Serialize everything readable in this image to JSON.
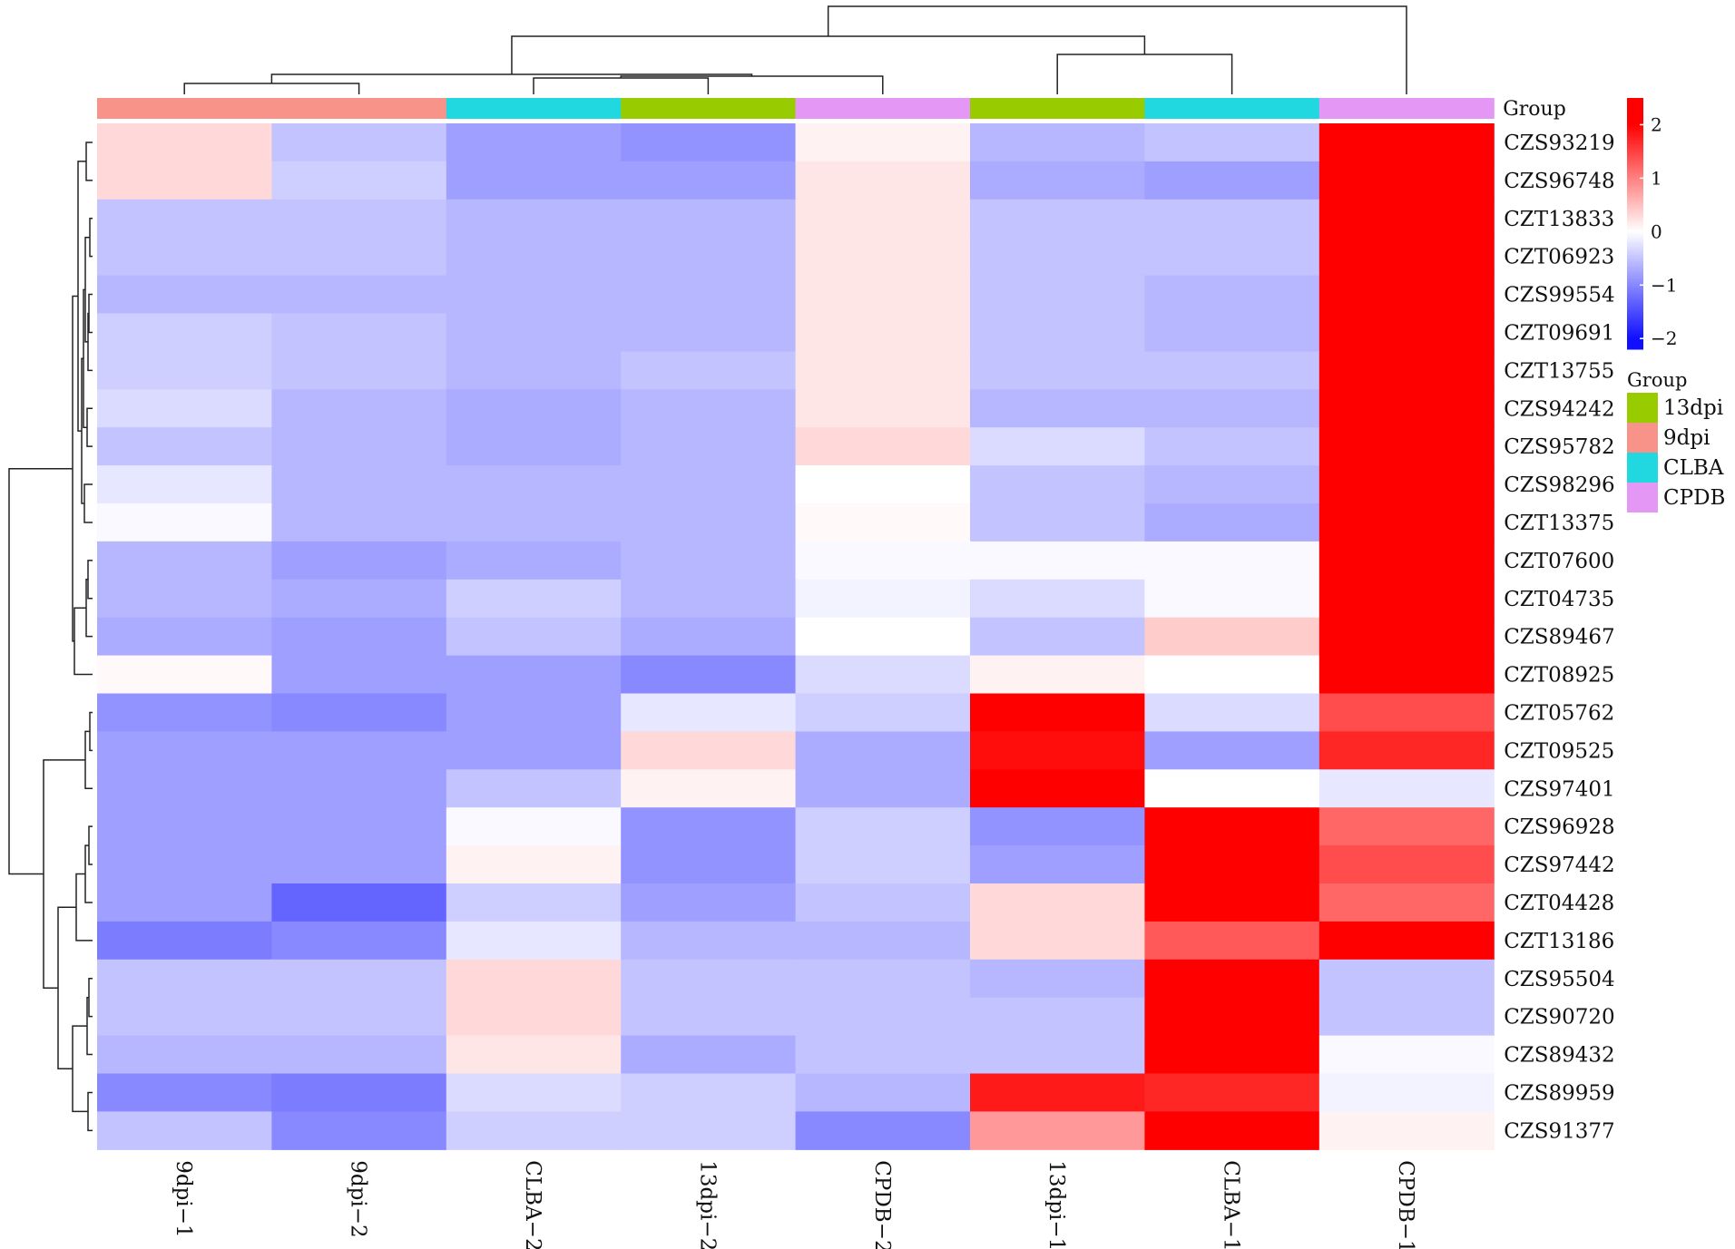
{
  "chart_data": {
    "type": "heatmap",
    "columns": [
      "9dpi-1",
      "9dpi-2",
      "CLBA-2",
      "13dpi-2",
      "CPDB-2",
      "13dpi-1",
      "CLBA-1",
      "CPDB-1"
    ],
    "column_labels": [
      "9dpi−1",
      "9dpi−2",
      "CLBA−2",
      "13dpi−2",
      "CPDB−2",
      "13dpi−1",
      "CLBA−1",
      "CPDB−1"
    ],
    "column_groups": [
      "9dpi",
      "9dpi",
      "CLBA",
      "13dpi",
      "CPDB",
      "13dpi",
      "CLBA",
      "CPDB"
    ],
    "rows": [
      "CZS93219",
      "CZS96748",
      "CZT13833",
      "CZT06923",
      "CZS99554",
      "CZT09691",
      "CZT13755",
      "CZS94242",
      "CZS95782",
      "CZS98296",
      "CZT13375",
      "CZT07600",
      "CZT04735",
      "CZS89467",
      "CZT08925",
      "CZT05762",
      "CZT09525",
      "CZS97401",
      "CZS96928",
      "CZS97442",
      "CZT04428",
      "CZT13186",
      "CZS95504",
      "CZS90720",
      "CZS89432",
      "CZS89959",
      "CZS91377"
    ],
    "values": [
      [
        0.3,
        -0.5,
        -0.8,
        -0.9,
        0.1,
        -0.6,
        -0.5,
        2.5
      ],
      [
        0.3,
        -0.4,
        -0.8,
        -0.8,
        0.2,
        -0.7,
        -0.8,
        2.5
      ],
      [
        -0.5,
        -0.5,
        -0.6,
        -0.6,
        0.2,
        -0.5,
        -0.5,
        2.5
      ],
      [
        -0.5,
        -0.5,
        -0.6,
        -0.6,
        0.2,
        -0.5,
        -0.5,
        2.5
      ],
      [
        -0.6,
        -0.6,
        -0.6,
        -0.6,
        0.2,
        -0.5,
        -0.6,
        2.5
      ],
      [
        -0.4,
        -0.5,
        -0.6,
        -0.6,
        0.2,
        -0.5,
        -0.6,
        2.5
      ],
      [
        -0.4,
        -0.5,
        -0.6,
        -0.5,
        0.2,
        -0.5,
        -0.5,
        2.5
      ],
      [
        -0.3,
        -0.6,
        -0.7,
        -0.6,
        0.2,
        -0.6,
        -0.6,
        2.5
      ],
      [
        -0.5,
        -0.6,
        -0.7,
        -0.6,
        0.3,
        -0.3,
        -0.5,
        2.5
      ],
      [
        -0.2,
        -0.6,
        -0.6,
        -0.6,
        0.0,
        -0.5,
        -0.6,
        2.5
      ],
      [
        -0.05,
        -0.6,
        -0.6,
        -0.6,
        0.05,
        -0.5,
        -0.7,
        2.5
      ],
      [
        -0.6,
        -0.8,
        -0.7,
        -0.6,
        -0.05,
        -0.05,
        -0.05,
        2.5
      ],
      [
        -0.6,
        -0.7,
        -0.4,
        -0.6,
        -0.1,
        -0.3,
        -0.05,
        2.5
      ],
      [
        -0.7,
        -0.8,
        -0.5,
        -0.7,
        0.0,
        -0.5,
        0.4,
        2.5
      ],
      [
        0.05,
        -0.8,
        -0.8,
        -1.0,
        -0.3,
        0.1,
        0.0,
        2.5
      ],
      [
        -0.9,
        -1.0,
        -0.8,
        -0.2,
        -0.4,
        2.0,
        -0.3,
        1.4
      ],
      [
        -0.8,
        -0.8,
        -0.8,
        0.3,
        -0.7,
        1.9,
        -0.8,
        1.7
      ],
      [
        -0.8,
        -0.8,
        -0.5,
        0.1,
        -0.7,
        2.5,
        0.0,
        -0.2
      ],
      [
        -0.8,
        -0.8,
        -0.05,
        -0.9,
        -0.4,
        -0.9,
        2.2,
        1.2
      ],
      [
        -0.8,
        -0.8,
        0.1,
        -0.9,
        -0.4,
        -0.8,
        2.0,
        1.4
      ],
      [
        -0.8,
        -1.3,
        -0.4,
        -0.8,
        -0.5,
        0.3,
        2.0,
        1.2
      ],
      [
        -1.1,
        -1.0,
        -0.2,
        -0.6,
        -0.6,
        0.3,
        1.3,
        2.0
      ],
      [
        -0.5,
        -0.5,
        0.3,
        -0.5,
        -0.5,
        -0.6,
        2.5,
        -0.5
      ],
      [
        -0.5,
        -0.5,
        0.3,
        -0.5,
        -0.5,
        -0.5,
        2.5,
        -0.5
      ],
      [
        -0.6,
        -0.6,
        0.2,
        -0.7,
        -0.5,
        -0.5,
        2.5,
        -0.05
      ],
      [
        -1.0,
        -1.1,
        -0.3,
        -0.4,
        -0.6,
        1.8,
        1.7,
        -0.1
      ],
      [
        -0.5,
        -1.0,
        -0.4,
        -0.4,
        -1.0,
        0.8,
        2.1,
        0.1
      ]
    ],
    "color_scale": {
      "min": -2,
      "mid": 0,
      "max": 2.5,
      "low_color": "#1010ff",
      "mid_color": "#ffffff",
      "high_color": "#ff0000"
    },
    "legend_ticks": [
      2,
      1,
      0,
      -1,
      -2
    ],
    "legend_tick_labels": [
      "2",
      "1",
      "0",
      "−1",
      "−2"
    ],
    "group_title": "Group",
    "group_legend_title": "Group",
    "groups": [
      {
        "name": "13dpi",
        "color": "#99cc00"
      },
      {
        "name": "9dpi",
        "color": "#f8938a"
      },
      {
        "name": "CLBA",
        "color": "#22d8e0"
      },
      {
        "name": "CPDB",
        "color": "#e497f4"
      }
    ],
    "column_dendrogram": [
      [
        0,
        1
      ],
      [
        2,
        3
      ],
      [
        9,
        4
      ],
      [
        8,
        10
      ],
      [
        5,
        6
      ],
      [
        11,
        12
      ],
      [
        13,
        7
      ]
    ],
    "row_dendrogram": [
      [
        0,
        1
      ],
      [
        2,
        3
      ],
      [
        4,
        5
      ],
      [
        29,
        6
      ],
      [
        28,
        30
      ],
      [
        7,
        8
      ],
      [
        31,
        32
      ],
      [
        9,
        10
      ],
      [
        33,
        34
      ],
      [
        27,
        35
      ],
      [
        11,
        12
      ],
      [
        37,
        13
      ],
      [
        38,
        14
      ],
      [
        36,
        39
      ],
      [
        15,
        16
      ],
      [
        41,
        17
      ],
      [
        18,
        19
      ],
      [
        43,
        20
      ],
      [
        44,
        21
      ],
      [
        22,
        23
      ],
      [
        46,
        24
      ],
      [
        25,
        26
      ],
      [
        47,
        48
      ],
      [
        45,
        49
      ],
      [
        42,
        50
      ],
      [
        40,
        51
      ]
    ]
  }
}
